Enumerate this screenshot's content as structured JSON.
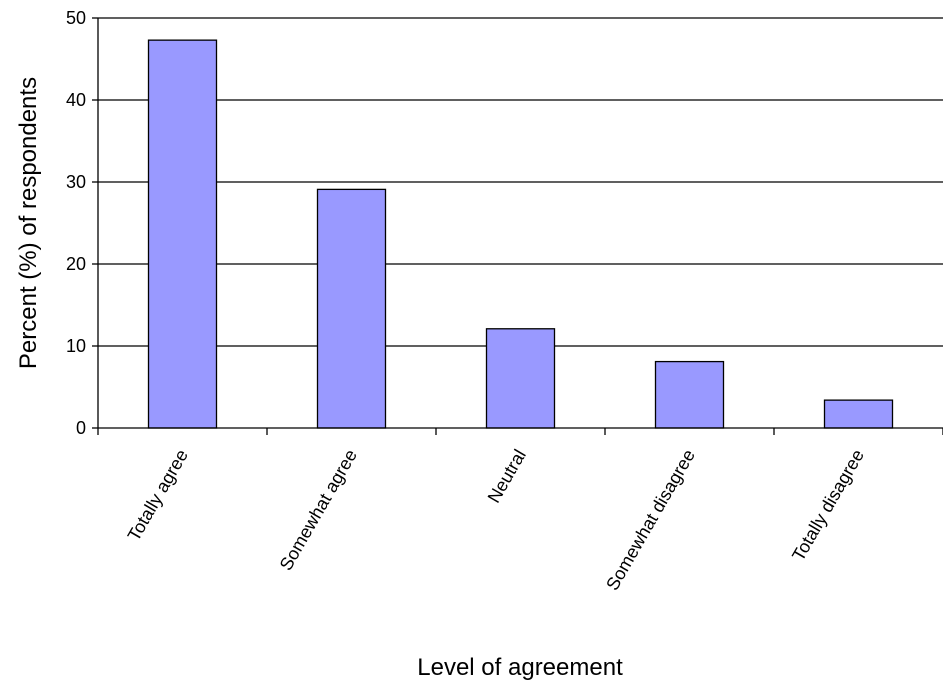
{
  "chart_data": {
    "type": "bar",
    "categories": [
      "Totally agree",
      "Somewhat agree",
      "Neutral",
      "Somewhat disagree",
      "Totally disagree"
    ],
    "values": [
      47.3,
      29.1,
      12.1,
      8.1,
      3.4
    ],
    "xlabel": "Level of agreement",
    "ylabel": "Percent (%) of respondents",
    "ylim": [
      0,
      50
    ],
    "yticks": [
      0,
      10,
      20,
      30,
      40,
      50
    ],
    "grid": true,
    "bar_color": "#9999ff",
    "bar_stroke": "#000000"
  }
}
